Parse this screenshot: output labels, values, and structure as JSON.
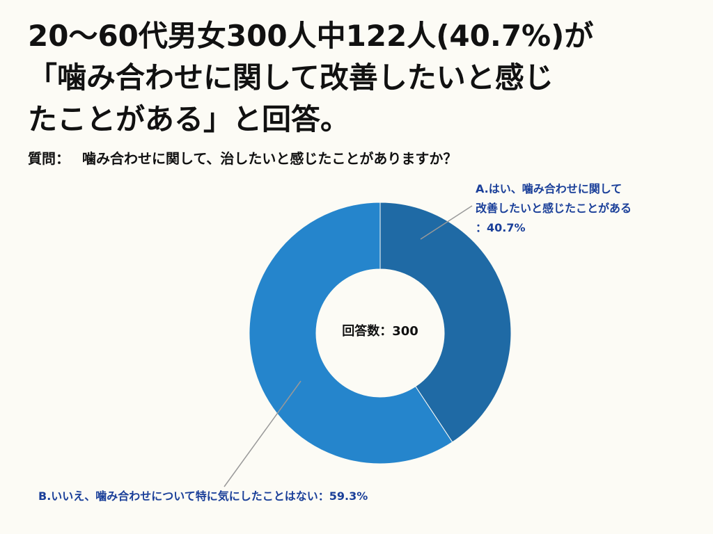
{
  "headline": {
    "line1": "20〜60代男女300人中122人(40.7%)が",
    "line2": "「噛み合わせに関して改善したいと感じ",
    "line3": "たことがある」と回答。"
  },
  "question": {
    "prefix": "質問：",
    "text": "噛み合わせに関して、治したいと感じたことがありますか？"
  },
  "chart_data": {
    "type": "pie",
    "donut": true,
    "center_label": "回答数：300",
    "slices": [
      {
        "label_lines": [
          "A.はい、噛み合わせに関して",
          "改善したいと感じたことがある",
          "：40.7%"
        ],
        "value": 40.7,
        "color": "#1f6aa5"
      },
      {
        "label_lines": [
          "B.いいえ、噛み合わせについて特に気にしたことはない：59.3%"
        ],
        "value": 59.3,
        "color": "#2585cc"
      }
    ],
    "colors": {
      "label_text": "#1a3f99",
      "leader_line": "#999999",
      "slice_border": "#fcfbf5"
    }
  }
}
